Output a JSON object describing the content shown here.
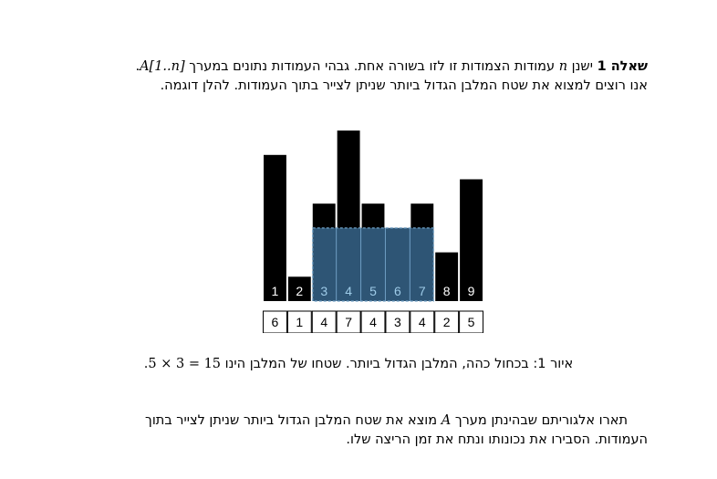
{
  "question": {
    "label": "שאלה 1",
    "line1_a": "ישנן",
    "n_symbol": "n",
    "line1_b": "עמודות הצמודות זו לזו בשורה אחת. גבהי העמודות נתונים במערך",
    "array_notation": "A[1..n]",
    "line1_end": ".",
    "line2": "אנו רוצים למצוא את שטח המלבן הגדול ביותר שניתן לצייר בתוך העמודות. להלן דוגמה."
  },
  "figure": {
    "columns": [
      {
        "index": "1",
        "height": 6,
        "highlighted": false
      },
      {
        "index": "2",
        "height": 1,
        "highlighted": false
      },
      {
        "index": "3",
        "height": 4,
        "highlighted": true
      },
      {
        "index": "4",
        "height": 7,
        "highlighted": true
      },
      {
        "index": "5",
        "height": 4,
        "highlighted": true
      },
      {
        "index": "6",
        "height": 3,
        "highlighted": true
      },
      {
        "index": "7",
        "height": 4,
        "highlighted": true
      },
      {
        "index": "8",
        "height": 2,
        "highlighted": false
      },
      {
        "index": "9",
        "height": 5,
        "highlighted": false
      }
    ],
    "array_values": [
      "6",
      "1",
      "4",
      "7",
      "4",
      "3",
      "4",
      "2",
      "5"
    ],
    "rectangle": {
      "start_index": 3,
      "end_index": 7,
      "height": 3
    },
    "colors": {
      "bar": "#000000",
      "rect_fill": "#2e5575",
      "highlight_label": "#9ecbe8",
      "label": "#ffffff",
      "divider": "#6f9fc4"
    }
  },
  "caption": {
    "text": "איור 1: בכחול כהה, המלבן הגדול ביותר. שטחו של המלבן הינו",
    "formula": "5 × 3 = 15",
    "end": "."
  },
  "task": {
    "line1_a": "תארו אלגוריתם שבהינתן מערך",
    "array_symbol": "A",
    "line1_b": "מוצא את שטח המלבן הגדול ביותר שניתן לצייר בתוך העמודות. הסבירו את נכונותו ונתח את זמן הריצה שלו."
  }
}
